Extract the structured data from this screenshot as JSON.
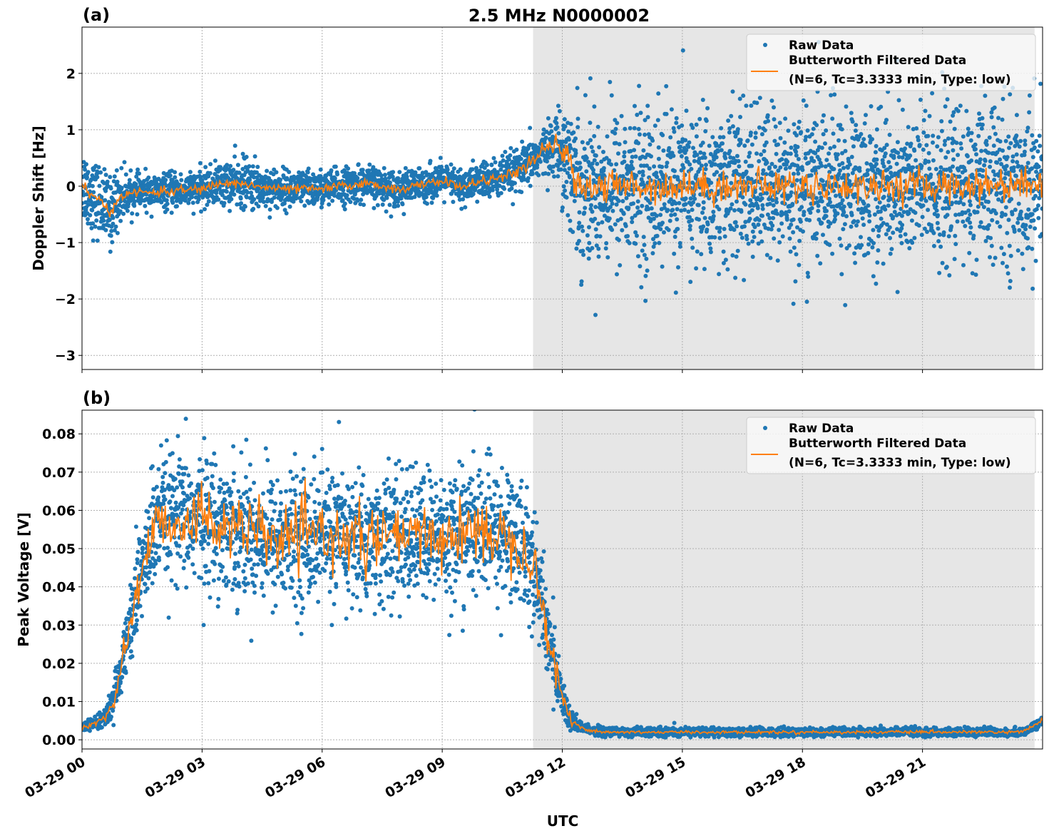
{
  "chart_data": {
    "type": "scatter+line",
    "title": "2.5 MHz N0000002",
    "xlabel": "UTC",
    "x_ticks": {
      "hours": [
        0,
        3,
        6,
        9,
        12,
        15,
        18,
        21
      ],
      "labels": [
        "03-29 00",
        "03-29 03",
        "03-29 06",
        "03-29 09",
        "03-29 12",
        "03-29 15",
        "03-29 18",
        "03-29 21"
      ]
    },
    "xlim_hours": [
      0,
      24
    ],
    "shaded_region_hours": [
      11.27,
      23.8
    ],
    "grid": true,
    "colors": {
      "raw": "#1f77b4",
      "filtered": "#ff7f0e",
      "shade": "#e6e6e6"
    },
    "legend": {
      "placement": "top-right",
      "entries": [
        "Raw Data",
        "Butterworth Filtered Data",
        "(N=6, Tc=3.3333 min, Type: low)"
      ]
    },
    "panels": [
      {
        "label": "(a)",
        "ylabel": "Doppler Shift [Hz]",
        "ylim": [
          -3.25,
          2.82
        ],
        "y_ticks": [
          2,
          1,
          0,
          -1,
          -2,
          -3
        ],
        "y_tick_labels": [
          "2",
          "1",
          "0",
          "−1",
          "−2",
          "−3"
        ],
        "filtered": {
          "x": [
            0,
            0.3,
            0.5,
            0.7,
            0.9,
            1.2,
            2,
            3,
            3.5,
            4,
            4.5,
            5,
            6,
            7,
            7.5,
            8,
            9,
            9.5,
            10,
            10.5,
            11,
            11.5,
            11.9,
            12.1,
            12.3,
            12.5,
            13,
            15,
            18,
            21,
            24
          ],
          "y": [
            0.05,
            -0.2,
            -0.3,
            -0.5,
            -0.2,
            -0.12,
            -0.1,
            -0.05,
            0.05,
            0.05,
            -0.02,
            -0.05,
            -0.05,
            0.05,
            0,
            -0.05,
            0.1,
            -0.02,
            0.1,
            0.15,
            0.3,
            0.6,
            0.75,
            0.5,
            0.2,
            0,
            0,
            0,
            0,
            0,
            0.05
          ],
          "noise": [
            0.04,
            0.04,
            0.04,
            0.04,
            0.04,
            0.04,
            0.04,
            0.04,
            0.04,
            0.04,
            0.04,
            0.04,
            0.04,
            0.04,
            0.04,
            0.04,
            0.04,
            0.04,
            0.04,
            0.04,
            0.05,
            0.08,
            0.1,
            0.12,
            0.15,
            0.15,
            0.15,
            0.15,
            0.15,
            0.15,
            0.15
          ]
        },
        "raw_spread": {
          "x": [
            0,
            0.8,
            1.2,
            3,
            4,
            5,
            9,
            11,
            11.8,
            12.2,
            12.5,
            24
          ],
          "y": [
            0.45,
            0.4,
            0.2,
            0.2,
            0.3,
            0.22,
            0.2,
            0.25,
            0.3,
            0.8,
            0.9,
            0.9
          ]
        }
      },
      {
        "label": "(b)",
        "ylabel": "Peak Voltage [V]",
        "ylim": [
          -0.0024,
          0.0862
        ],
        "y_ticks": [
          0,
          0.01,
          0.02,
          0.03,
          0.04,
          0.05,
          0.06,
          0.07,
          0.08
        ],
        "y_tick_labels": [
          "0.00",
          "0.01",
          "0.02",
          "0.03",
          "0.04",
          "0.05",
          "0.06",
          "0.07",
          "0.08"
        ],
        "filtered": {
          "x": [
            0,
            0.5,
            0.8,
            1,
            1.3,
            1.5,
            1.8,
            2,
            3,
            4,
            5,
            6,
            7,
            8,
            9,
            10,
            11,
            11.3,
            11.6,
            11.9,
            12.2,
            12.5,
            13,
            19,
            23.5,
            24
          ],
          "y": [
            0.003,
            0.005,
            0.01,
            0.02,
            0.035,
            0.045,
            0.055,
            0.057,
            0.058,
            0.055,
            0.052,
            0.054,
            0.052,
            0.053,
            0.053,
            0.055,
            0.052,
            0.045,
            0.03,
            0.015,
            0.005,
            0.003,
            0.002,
            0.002,
            0.002,
            0.005
          ],
          "noise": [
            0.0003,
            0.0005,
            0.001,
            0.002,
            0.003,
            0.004,
            0.004,
            0.004,
            0.004,
            0.004,
            0.004,
            0.004,
            0.004,
            0.004,
            0.004,
            0.004,
            0.004,
            0.004,
            0.003,
            0.002,
            0.001,
            0.0003,
            0.0002,
            0.0002,
            0.0002,
            0.0005
          ]
        },
        "raw_spread": {
          "x": [
            0,
            0.5,
            1,
            1.5,
            2,
            11,
            11.6,
            12,
            12.5,
            24
          ],
          "y": [
            0.0008,
            0.0015,
            0.005,
            0.01,
            0.012,
            0.012,
            0.009,
            0.004,
            0.0008,
            0.0008
          ]
        }
      }
    ]
  }
}
